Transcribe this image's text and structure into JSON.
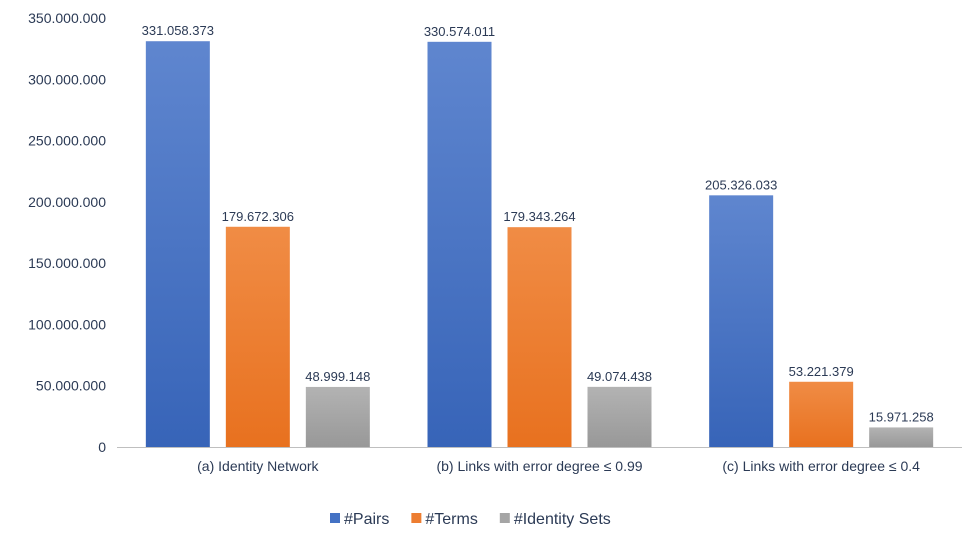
{
  "chart_data": {
    "type": "bar",
    "categories": [
      "(a) Identity Network",
      "(b) Links with error degree ≤ 0.99",
      "(c) Links with error degree ≤ 0.4"
    ],
    "series": [
      {
        "name": "#Pairs",
        "color": "#4472c4",
        "values": [
          331058373,
          330574011,
          205326033
        ],
        "labels": [
          "331.058.373",
          "330.574.011",
          "205.326.033"
        ]
      },
      {
        "name": "#Terms",
        "color": "#ed7d31",
        "values": [
          179672306,
          179343264,
          53221379
        ],
        "labels": [
          "179.672.306",
          "179.343.264",
          "53.221.379"
        ]
      },
      {
        "name": "#Identity Sets",
        "color": "#a5a5a5",
        "values": [
          48999148,
          49074438,
          15971258
        ],
        "labels": [
          "48.999.148",
          "49.074.438",
          "15.971.258"
        ]
      }
    ],
    "yticks": [
      0,
      50000000,
      100000000,
      150000000,
      200000000,
      250000000,
      300000000,
      350000000
    ],
    "ytick_labels": [
      "0",
      "50.000.000",
      "100.000.000",
      "150.000.000",
      "200.000.000",
      "250.000.000",
      "300.000.000",
      "350.000.000"
    ],
    "ylim": [
      0,
      350000000
    ],
    "title": "",
    "xlabel": "",
    "ylabel": "",
    "grid": false,
    "legend_position": "bottom-center"
  }
}
